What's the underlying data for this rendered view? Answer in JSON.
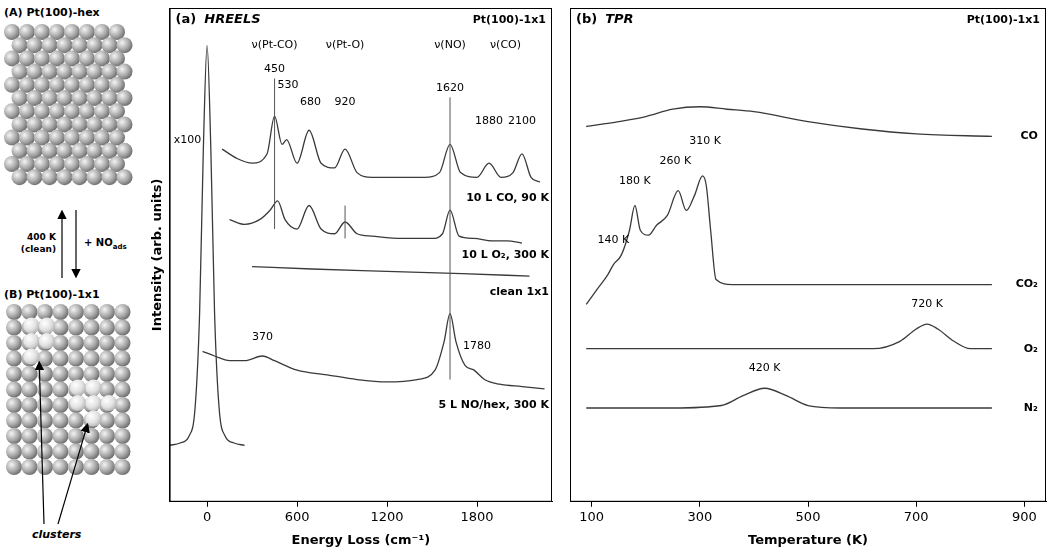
{
  "chart_data": [
    {
      "type": "line",
      "panel": "(a)",
      "title": "HREELS",
      "corner_label": "Pt(100)-1x1",
      "x_label": "Energy Loss (cm⁻¹)",
      "y_label": "Intensity (arb. units)",
      "xlim": [
        -250,
        2300
      ],
      "xticks": [
        0,
        600,
        1200,
        1800
      ],
      "ylim": [
        0,
        105
      ],
      "grid": false,
      "tick_labels": "x",
      "series": [
        {
          "color": "#3a3a3a",
          "x": [
            100,
            200,
            300,
            400,
            450,
            500,
            530,
            600,
            680,
            760,
            850,
            920,
            1000,
            1100,
            1250,
            1450,
            1550,
            1620,
            1690,
            1800,
            1880,
            1960,
            2040,
            2100,
            2160,
            2220
          ],
          "values": [
            75,
            73,
            72,
            74,
            82,
            76,
            77,
            72,
            79,
            72,
            71,
            75,
            70,
            69,
            69,
            69,
            70,
            76,
            70,
            69,
            72,
            69,
            70,
            74,
            69,
            68
          ]
        },
        {
          "color": "#3a3a3a",
          "x": [
            150,
            250,
            350,
            420,
            470,
            520,
            600,
            680,
            760,
            850,
            920,
            1000,
            1100,
            1300,
            1500,
            1570,
            1620,
            1680,
            1780,
            1900,
            2000,
            2100
          ],
          "values": [
            60,
            59,
            60,
            62,
            64,
            60,
            58,
            63,
            58,
            57,
            59.5,
            57,
            56.5,
            56,
            56,
            57,
            62,
            56.5,
            56,
            55.5,
            55.5,
            55
          ]
        },
        {
          "color": "#3a3a3a",
          "x": [
            300,
            700,
            1200,
            1700,
            2150
          ],
          "values": [
            50,
            49.5,
            49,
            48.5,
            48
          ]
        },
        {
          "color": "#3a3a3a",
          "x": [
            -30,
            50,
            150,
            250,
            370,
            450,
            600,
            800,
            1000,
            1200,
            1400,
            1520,
            1580,
            1620,
            1660,
            1720,
            1780,
            1850,
            1950,
            2100,
            2250
          ],
          "values": [
            32,
            31,
            30,
            30,
            31,
            30,
            28,
            27,
            26,
            25.5,
            26,
            28,
            34,
            40,
            34,
            29,
            28,
            26,
            25,
            24.5,
            24
          ]
        },
        {
          "color": "#3a3a3a",
          "x": [
            -250,
            -180,
            -120,
            -80,
            -50,
            -25,
            0,
            25,
            50,
            80,
            120,
            180,
            250
          ],
          "values": [
            12,
            12.5,
            14,
            20,
            40,
            75,
            97,
            75,
            40,
            20,
            14,
            12.5,
            12
          ]
        }
      ],
      "mode_labels": [
        {
          "text": "ν(Pt-CO)",
          "x": 450,
          "y": 97
        },
        {
          "text": "ν(Pt-O)",
          "x": 920,
          "y": 97
        },
        {
          "text": "ν(NO)",
          "x": 1620,
          "y": 97
        },
        {
          "text": "ν(CO)",
          "x": 1990,
          "y": 97
        }
      ],
      "peak_labels": [
        {
          "text": "450",
          "x": 450,
          "y": 92
        },
        {
          "text": "530",
          "x": 540,
          "y": 88.5
        },
        {
          "text": "680",
          "x": 690,
          "y": 85
        },
        {
          "text": "920",
          "x": 920,
          "y": 85
        },
        {
          "text": "1620",
          "x": 1620,
          "y": 88
        },
        {
          "text": "1880",
          "x": 1880,
          "y": 81
        },
        {
          "text": "2100",
          "x": 2100,
          "y": 81
        },
        {
          "text": "370",
          "x": 370,
          "y": 35
        },
        {
          "text": "1780",
          "x": 1800,
          "y": 33
        }
      ],
      "trace_labels": [
        {
          "text": "10 L CO, 90 K",
          "x": 2280,
          "y": 64.5
        },
        {
          "text": "10 L O₂, 300 K",
          "x": 2280,
          "y": 52.5
        },
        {
          "text": "clean 1x1",
          "x": 2280,
          "y": 44.5
        },
        {
          "text": "5 L NO/hex, 300 K",
          "x": 2280,
          "y": 20.5
        }
      ],
      "scale_labels": [
        {
          "text": "x100",
          "x": -130,
          "y": 77
        }
      ],
      "vlines": [
        {
          "x": 450,
          "y": [
            58,
            90
          ]
        },
        {
          "x": 920,
          "y": [
            56,
            63
          ]
        },
        {
          "x": 1620,
          "y": [
            26,
            86
          ]
        }
      ]
    },
    {
      "type": "line",
      "panel": "(b)",
      "title": "TPR",
      "corner_label": "Pt(100)-1x1",
      "x_label": "Temperature (K)",
      "xlim": [
        60,
        940
      ],
      "xticks": [
        100,
        300,
        500,
        700,
        900
      ],
      "ylim": [
        0,
        100
      ],
      "grid": false,
      "tick_labels": "x",
      "series": [
        {
          "color": "#3a3a3a",
          "x": [
            90,
            150,
            200,
            250,
            300,
            350,
            400,
            500,
            600,
            700,
            840
          ],
          "values": [
            76,
            77,
            78,
            79.5,
            80,
            79.5,
            79,
            77,
            75.5,
            74.5,
            74
          ]
        },
        {
          "color": "#3a3a3a",
          "x": [
            90,
            110,
            130,
            140,
            155,
            170,
            180,
            190,
            205,
            220,
            240,
            260,
            275,
            290,
            305,
            312,
            320,
            330,
            360,
            450,
            600,
            840
          ],
          "values": [
            40,
            43,
            46,
            48,
            50,
            55,
            60,
            55,
            54,
            56,
            58,
            63,
            59,
            62,
            66,
            64,
            55,
            45,
            44,
            44,
            44,
            44
          ]
        },
        {
          "color": "#3a3a3a",
          "x": [
            90,
            300,
            500,
            620,
            670,
            700,
            720,
            740,
            770,
            800,
            840
          ],
          "values": [
            31,
            31,
            31,
            31,
            32.5,
            35,
            36,
            35,
            32.5,
            31,
            31
          ]
        },
        {
          "color": "#3a3a3a",
          "x": [
            90,
            250,
            340,
            380,
            420,
            460,
            500,
            560,
            840
          ],
          "values": [
            19,
            19,
            19.5,
            21.5,
            23,
            21.5,
            19.5,
            19,
            19
          ]
        }
      ],
      "peak_labels": [
        {
          "text": "140 K",
          "x": 140,
          "y": 53
        },
        {
          "text": "180 K",
          "x": 180,
          "y": 65
        },
        {
          "text": "260 K",
          "x": 255,
          "y": 69
        },
        {
          "text": "310 K",
          "x": 310,
          "y": 73
        },
        {
          "text": "720 K",
          "x": 720,
          "y": 40
        },
        {
          "text": "420 K",
          "x": 420,
          "y": 27
        }
      ],
      "trace_labels": [
        {
          "text": "CO",
          "x": 925,
          "y": 74
        },
        {
          "text": "CO₂",
          "x": 925,
          "y": 44
        },
        {
          "text": "O₂",
          "x": 925,
          "y": 31
        },
        {
          "text": "N₂",
          "x": 925,
          "y": 19
        }
      ]
    }
  ],
  "diagram": {
    "panels": [
      {
        "label": "(A) Pt(100)-hex"
      },
      {
        "label": "(B) Pt(100)-1x1"
      }
    ],
    "up_label": [
      "400 K",
      "(clean)"
    ],
    "down_label": {
      "text": "+ NO",
      "sub": "ads"
    },
    "callout": "clusters"
  }
}
